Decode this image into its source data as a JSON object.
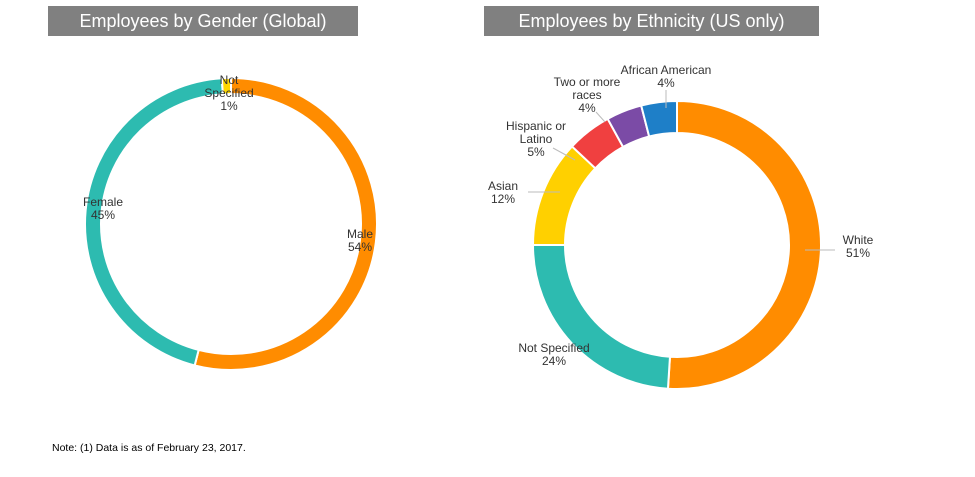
{
  "chart_data": [
    {
      "type": "donut",
      "title": "Employees by Gender (Global)",
      "categories": [
        "Male",
        "Female",
        "Not Specified"
      ],
      "values": [
        54,
        45,
        1
      ],
      "value_labels": [
        "54%",
        "45%",
        "1%"
      ],
      "label_lines": [
        [
          "Male",
          "54%"
        ],
        [
          "Female",
          "45%"
        ],
        [
          "Not",
          "Specified",
          "1%"
        ]
      ],
      "colors": [
        "#FF8C00",
        "#2DBBB0",
        "#FFD700"
      ]
    },
    {
      "type": "donut",
      "title": "Employees by Ethnicity (US only)",
      "categories": [
        "White",
        "Not Specified",
        "Asian",
        "Hispanic or Latino",
        "Two or more races",
        "African American"
      ],
      "values": [
        51,
        24,
        12,
        5,
        4,
        4
      ],
      "value_labels": [
        "51%",
        "24%",
        "12%",
        "5%",
        "4%",
        "4%"
      ],
      "label_lines": [
        [
          "White",
          "51%"
        ],
        [
          "Not Specified",
          "24%"
        ],
        [
          "Asian",
          "12%"
        ],
        [
          "Hispanic or",
          "Latino",
          "5%"
        ],
        [
          "Two or more",
          "races",
          "4%"
        ],
        [
          "African American",
          "4%"
        ]
      ],
      "colors": [
        "#FF8C00",
        "#2DBBB0",
        "#FFD000",
        "#F04040",
        "#7B4BA6",
        "#1E7FC8"
      ]
    }
  ],
  "note": "Note:  (1) Data is as of February 23, 2017."
}
